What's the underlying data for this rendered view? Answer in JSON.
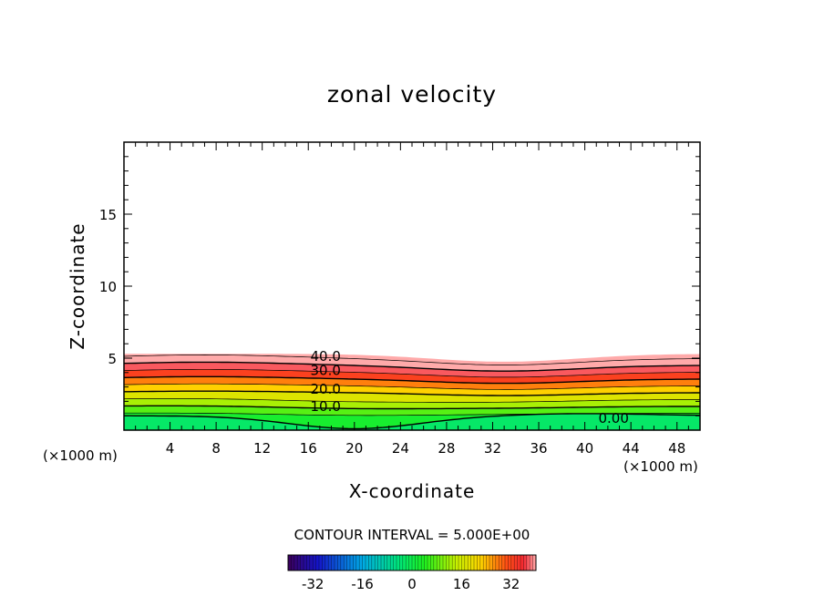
{
  "chart_data": {
    "type": "contour",
    "title": "zonal velocity",
    "xlabel": "X-coordinate",
    "ylabel": "Z-coordinate",
    "x_unit_left": "(×1000 m)",
    "x_unit_right": "(×1000 m)",
    "xlim": [
      0,
      50
    ],
    "ylim": [
      0,
      20
    ],
    "x_ticks": [
      4,
      8,
      12,
      16,
      20,
      24,
      28,
      32,
      36,
      40,
      44,
      48
    ],
    "y_ticks": [
      5,
      10,
      15
    ],
    "contour_interval_text": "CONTOUR INTERVAL = 5.000E+00",
    "contour_levels": [
      0,
      5,
      10,
      15,
      20,
      25,
      30,
      35,
      40,
      45
    ],
    "contour_labels": [
      {
        "text": "40.0",
        "x": 17.5,
        "y": 5.2
      },
      {
        "text": "30.0",
        "x": 17.5,
        "y": 4.2
      },
      {
        "text": "20.0",
        "x": 17.5,
        "y": 2.9
      },
      {
        "text": "10.0",
        "x": 17.5,
        "y": 1.7
      },
      {
        "text": "0.00",
        "x": 42.5,
        "y": 0.9
      }
    ],
    "field_top_z": 5.3,
    "color_bar": {
      "min": -40,
      "max": 40,
      "tick_labels": [
        "-32",
        "-16",
        "0",
        "16",
        "32"
      ],
      "tick_values": [
        -32,
        -16,
        0,
        16,
        32
      ]
    }
  }
}
